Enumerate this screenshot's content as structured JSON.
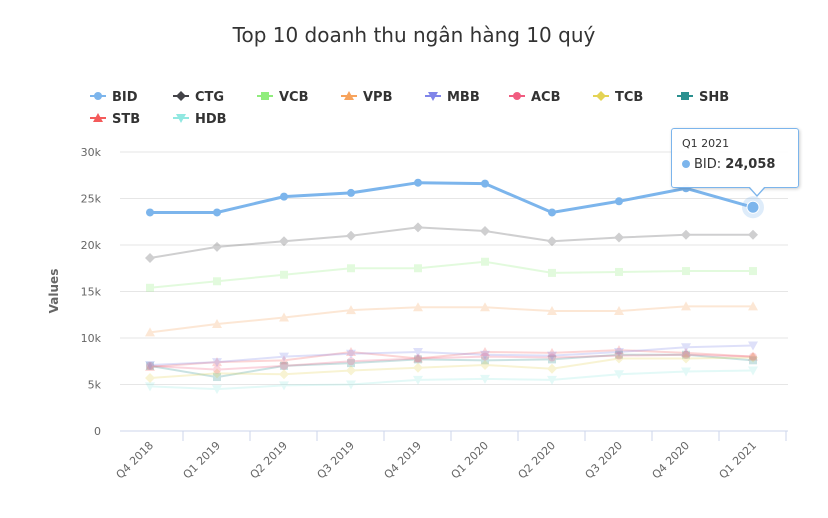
{
  "chart_data": {
    "type": "line",
    "title": "Top 10 doanh thu ngân hàng 10 quý",
    "xlabel": "",
    "ylabel": "Values",
    "ylim": [
      0,
      30000
    ],
    "yticks": [
      "0",
      "5k",
      "10k",
      "15k",
      "20k",
      "25k",
      "30k"
    ],
    "grid": true,
    "legend_position": "top",
    "categories": [
      "Q4 2018",
      "Q1 2019",
      "Q2 2019",
      "Q3 2019",
      "Q4 2019",
      "Q1 2020",
      "Q2 2020",
      "Q3 2020",
      "Q4 2020",
      "Q1 2021"
    ],
    "series": [
      {
        "name": "BID",
        "color": "#7cb5ec",
        "marker": "circle",
        "values": [
          23500,
          23500,
          25200,
          25600,
          26700,
          26600,
          23500,
          24700,
          26100,
          24058
        ]
      },
      {
        "name": "CTG",
        "color": "#434348",
        "marker": "diamond",
        "values": [
          18600,
          19800,
          20400,
          21000,
          21900,
          21500,
          20400,
          20800,
          21100,
          21100
        ]
      },
      {
        "name": "VCB",
        "color": "#90ed7d",
        "marker": "square",
        "values": [
          15400,
          16100,
          16800,
          17500,
          17500,
          18200,
          17000,
          17100,
          17200,
          17200
        ]
      },
      {
        "name": "VPB",
        "color": "#f7a35c",
        "marker": "triangle",
        "values": [
          10600,
          11500,
          12200,
          13000,
          13300,
          13300,
          12900,
          12900,
          13400,
          13400
        ]
      },
      {
        "name": "MBB",
        "color": "#8085e9",
        "marker": "triangle-down",
        "values": [
          7100,
          7400,
          8000,
          8300,
          8500,
          8200,
          8100,
          8500,
          9000,
          9200
        ]
      },
      {
        "name": "ACB",
        "color": "#f15c80",
        "marker": "circle",
        "values": [
          7000,
          6600,
          7000,
          7500,
          7800,
          8000,
          7900,
          8100,
          8200,
          8000
        ]
      },
      {
        "name": "TCB",
        "color": "#e4d354",
        "marker": "diamond",
        "values": [
          5700,
          6200,
          6100,
          6500,
          6800,
          7100,
          6700,
          7800,
          7800,
          7900
        ]
      },
      {
        "name": "SHB",
        "color": "#2b908f",
        "marker": "square",
        "values": [
          7000,
          5800,
          7000,
          7300,
          7700,
          7600,
          7700,
          8200,
          8200,
          7600
        ]
      },
      {
        "name": "STB",
        "color": "#f45b5b",
        "marker": "triangle",
        "values": [
          6900,
          7400,
          7600,
          8500,
          7800,
          8500,
          8400,
          8700,
          8400,
          8000
        ]
      },
      {
        "name": "HDB",
        "color": "#91e8e1",
        "marker": "triangle-down",
        "values": [
          4800,
          4500,
          4900,
          5000,
          5500,
          5600,
          5500,
          6100,
          6400,
          6500
        ]
      }
    ],
    "highlighted_series": "BID"
  },
  "tooltip": {
    "header": "Q1 2021",
    "series": "BID",
    "label": "BID: ",
    "value": "24,058"
  }
}
